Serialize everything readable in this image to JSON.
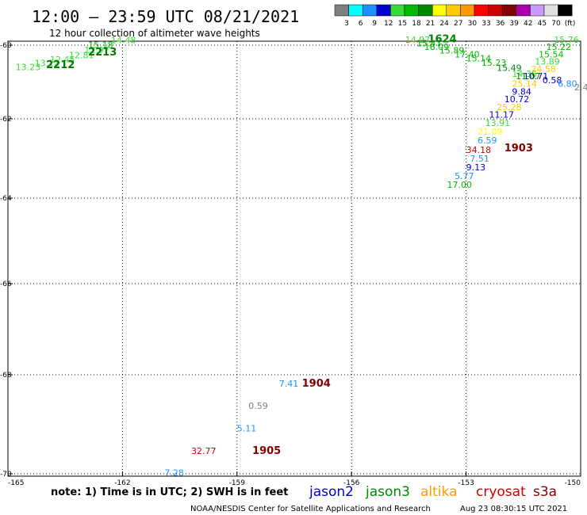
{
  "header": {
    "title": "12:00 – 23:59 UTC 08/21/2021",
    "subtitle": "12 hour collection of altimeter wave heights"
  },
  "legend_scale": {
    "labels": [
      "3",
      "6",
      "9",
      "12",
      "15",
      "18",
      "21",
      "24",
      "27",
      "30",
      "33",
      "36",
      "39",
      "42",
      "45",
      "70",
      "(ft)"
    ],
    "colors": [
      "#7f7f7f",
      "#00ffff",
      "#1e90ff",
      "#0000cd",
      "#33dd33",
      "#00bb00",
      "#008800",
      "#ffff00",
      "#ffcc00",
      "#ff9900",
      "#ff0000",
      "#cc0000",
      "#800000",
      "#aa00aa",
      "#cc99ff",
      "#e0e0e0",
      "#000000"
    ]
  },
  "axes": {
    "y_ticks": [
      "-60",
      "-62",
      "-64",
      "-66",
      "-68",
      "-70"
    ],
    "x_ticks": [
      "-165",
      "-162",
      "-159",
      "-156",
      "-153",
      "-150"
    ]
  },
  "note": "note: 1) Time is in UTC; 2) SWH is in feet",
  "satellites": [
    {
      "name": "jason2",
      "color": "#0000cc"
    },
    {
      "name": "jason3",
      "color": "#008800"
    },
    {
      "name": "altika",
      "color": "#ff9900"
    },
    {
      "name": "cryosat",
      "color": "#cc0000"
    },
    {
      "name": "s3a",
      "color": "#800000"
    }
  ],
  "footer": {
    "credit": "NOAA/NESDIS Center for Satellite Applications and Research",
    "timestamp": "Aug 23 08:30:15 UTC 2021"
  },
  "map": {
    "lon_range": [
      -165,
      -150
    ],
    "lat_range": [
      -70,
      -60
    ],
    "time_labels": [
      {
        "text": "2212",
        "lon": -164.0,
        "lat": -60.62,
        "color": "#007700"
      },
      {
        "text": "2213",
        "lon": -162.9,
        "lat": -60.28,
        "color": "#007700"
      },
      {
        "text": "1624",
        "lon": -154.0,
        "lat": -59.92,
        "color": "#008800"
      },
      {
        "text": "1903",
        "lon": -152.0,
        "lat": -62.82,
        "color": "#800000"
      },
      {
        "text": "1904",
        "lon": -157.3,
        "lat": -68.24,
        "color": "#800000"
      },
      {
        "text": "1905",
        "lon": -158.6,
        "lat": -69.6,
        "color": "#800000"
      }
    ],
    "readings": [
      {
        "text": "13.23",
        "lon": -164.8,
        "lat": -60.68,
        "color": "#33dd33"
      },
      {
        "text": "13.12",
        "lon": -164.3,
        "lat": -60.57,
        "color": "#33dd33"
      },
      {
        "text": "12.45",
        "lon": -163.9,
        "lat": -60.47,
        "color": "#33dd33"
      },
      {
        "text": "12.81",
        "lon": -163.4,
        "lat": -60.35,
        "color": "#33dd33"
      },
      {
        "text": "12.97",
        "lon": -163.0,
        "lat": -60.22,
        "color": "#33dd33"
      },
      {
        "text": "15.18",
        "lon": -162.9,
        "lat": -60.07,
        "color": "#00bb00"
      },
      {
        "text": "14.48",
        "lon": -162.3,
        "lat": -59.95,
        "color": "#33dd33"
      },
      {
        "text": "14.97",
        "lon": -154.6,
        "lat": -59.93,
        "color": "#33dd33"
      },
      {
        "text": "15.47",
        "lon": -154.3,
        "lat": -60.03,
        "color": "#00bb00"
      },
      {
        "text": "16.09",
        "lon": -154.1,
        "lat": -60.13,
        "color": "#00bb00"
      },
      {
        "text": "15.89",
        "lon": -153.7,
        "lat": -60.23,
        "color": "#00bb00"
      },
      {
        "text": "17.40",
        "lon": -153.3,
        "lat": -60.33,
        "color": "#00bb00"
      },
      {
        "text": "15.14",
        "lon": -153.0,
        "lat": -60.44,
        "color": "#00bb00"
      },
      {
        "text": "15.23",
        "lon": -152.6,
        "lat": -60.56,
        "color": "#00bb00"
      },
      {
        "text": "15.49",
        "lon": -152.2,
        "lat": -60.7,
        "color": "#008800"
      },
      {
        "text": "14.36",
        "lon": -151.8,
        "lat": -60.86,
        "color": "#33dd33"
      },
      {
        "text": "15.76",
        "lon": -150.7,
        "lat": -59.93,
        "color": "#33dd33"
      },
      {
        "text": "15.22",
        "lon": -150.9,
        "lat": -60.13,
        "color": "#00bb00"
      },
      {
        "text": "15.54",
        "lon": -151.1,
        "lat": -60.33,
        "color": "#00bb00"
      },
      {
        "text": "13.89",
        "lon": -151.2,
        "lat": -60.53,
        "color": "#33dd33"
      },
      {
        "text": "24.58",
        "lon": -151.3,
        "lat": -60.73,
        "color": "#ffcc00"
      },
      {
        "text": "10.71",
        "lon": -151.5,
        "lat": -60.93,
        "color": "#0000cd"
      },
      {
        "text": "11.07",
        "lon": -151.7,
        "lat": -60.93,
        "color": "#008800"
      },
      {
        "text": "0.58",
        "lon": -151.0,
        "lat": -61.03,
        "color": "#0000cd"
      },
      {
        "text": "6.80",
        "lon": -150.6,
        "lat": -61.13,
        "color": "#1e90ff"
      },
      {
        "text": "2.4",
        "lon": -150.1,
        "lat": -61.23,
        "color": "#7f7f7f"
      },
      {
        "text": "25.14",
        "lon": -151.8,
        "lat": -61.13,
        "color": "#ffcc00"
      },
      {
        "text": "9.84",
        "lon": -151.8,
        "lat": -61.34,
        "color": "#0000cd"
      },
      {
        "text": "10.72",
        "lon": -152.0,
        "lat": -61.55,
        "color": "#0000cd"
      },
      {
        "text": "25.28",
        "lon": -152.2,
        "lat": -61.76,
        "color": "#ffcc00"
      },
      {
        "text": "11.17",
        "lon": -152.4,
        "lat": -61.97,
        "color": "#0000cd"
      },
      {
        "text": "13.91",
        "lon": -152.5,
        "lat": -62.18,
        "color": "#33dd33"
      },
      {
        "text": "21.09",
        "lon": -152.7,
        "lat": -62.4,
        "color": "#ffff00"
      },
      {
        "text": "6.59",
        "lon": -152.7,
        "lat": -62.62,
        "color": "#1e90ff"
      },
      {
        "text": "34.18",
        "lon": -153.0,
        "lat": -62.86,
        "color": "#cc0000"
      },
      {
        "text": "7.51",
        "lon": -152.9,
        "lat": -63.08,
        "color": "#1e90ff"
      },
      {
        "text": "9.13",
        "lon": -153.0,
        "lat": -63.3,
        "color": "#0000cd"
      },
      {
        "text": "5.77",
        "lon": -153.3,
        "lat": -63.52,
        "color": "#1e90ff"
      },
      {
        "text": "17.00",
        "lon": -153.5,
        "lat": -63.74,
        "color": "#00bb00"
      },
      {
        "text": "7.41",
        "lon": -157.9,
        "lat": -68.24,
        "color": "#1e90ff"
      },
      {
        "text": "0.59",
        "lon": -158.7,
        "lat": -68.69,
        "color": "#7f7f7f"
      },
      {
        "text": "5.11",
        "lon": -159.0,
        "lat": -69.14,
        "color": "#1e90ff"
      },
      {
        "text": "32.77",
        "lon": -160.2,
        "lat": -69.6,
        "color": "#cc0000"
      },
      {
        "text": "7.28",
        "lon": -160.9,
        "lat": -70.04,
        "color": "#1e90ff"
      }
    ]
  }
}
